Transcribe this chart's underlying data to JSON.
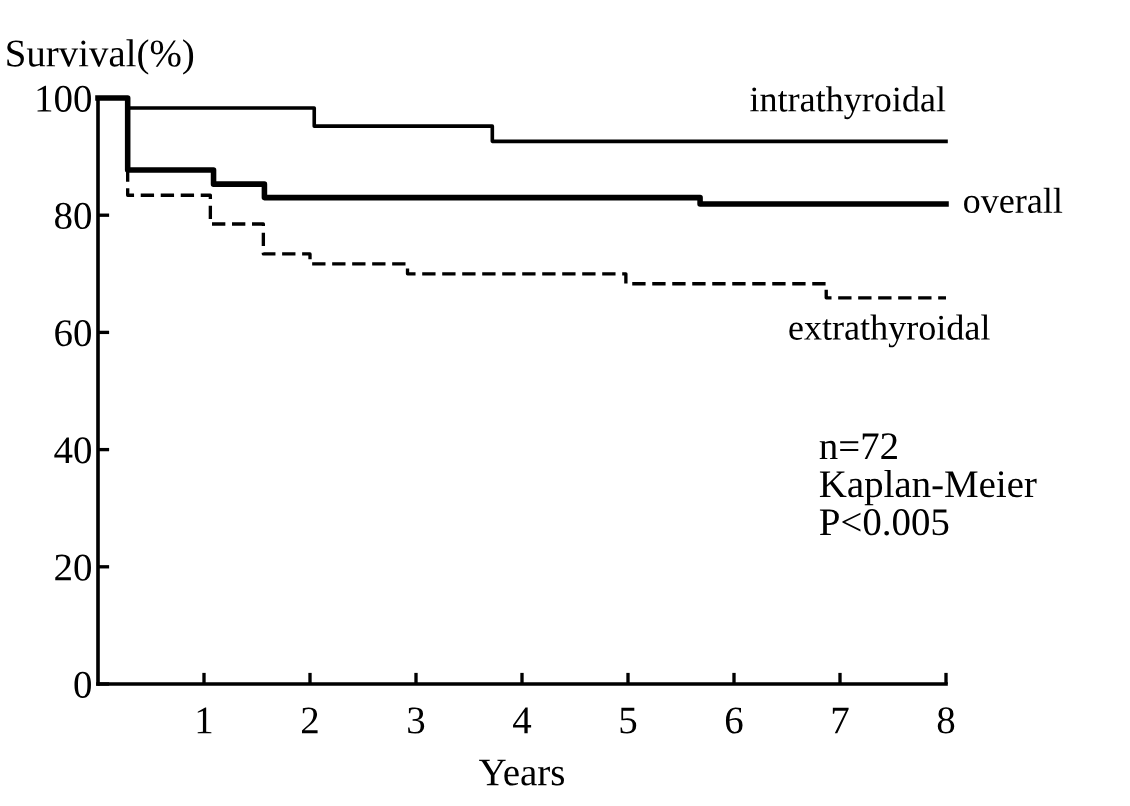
{
  "chart_data": {
    "type": "step",
    "ylabel": "Survival(%)",
    "xlabel": "Years",
    "xlim": [
      0,
      8
    ],
    "ylim": [
      0,
      100
    ],
    "xticks": [
      1,
      2,
      3,
      4,
      5,
      6,
      7,
      8
    ],
    "yticks": [
      0,
      20,
      40,
      60,
      80,
      100
    ],
    "grid": false,
    "legend": false,
    "annotations": [
      "n=72",
      "Kaplan-Meier",
      "P<0.005"
    ],
    "series": [
      {
        "name": "intrathyroidal",
        "color": "#000000",
        "line_style": "solid",
        "x": [
          0,
          0.28,
          2.04,
          3.72,
          8
        ],
        "values": [
          100,
          98.3,
          95.2,
          92.6,
          92.6
        ]
      },
      {
        "name": "overall",
        "color": "#000000",
        "line_style": "solid",
        "x": [
          0,
          0.28,
          1.09,
          1.57,
          5.68,
          8
        ],
        "values": [
          100,
          87.7,
          85.3,
          83,
          81.9,
          81.9
        ]
      },
      {
        "name": "extrathyroidal",
        "color": "#000000",
        "line_style": "dashed",
        "x": [
          0,
          0.28,
          1.06,
          1.56,
          2.0,
          2.92,
          4.98,
          6.87,
          8
        ],
        "values": [
          100,
          83.4,
          78.5,
          73.4,
          71.7,
          70,
          68.3,
          65.9,
          65.9
        ]
      }
    ]
  }
}
